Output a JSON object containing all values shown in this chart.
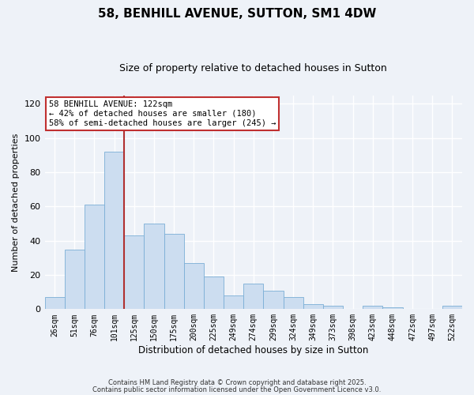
{
  "title": "58, BENHILL AVENUE, SUTTON, SM1 4DW",
  "subtitle": "Size of property relative to detached houses in Sutton",
  "xlabel": "Distribution of detached houses by size in Sutton",
  "ylabel": "Number of detached properties",
  "bar_color": "#ccddf0",
  "bar_edge_color": "#7aaed6",
  "categories": [
    "26sqm",
    "51sqm",
    "76sqm",
    "101sqm",
    "125sqm",
    "150sqm",
    "175sqm",
    "200sqm",
    "225sqm",
    "249sqm",
    "274sqm",
    "299sqm",
    "324sqm",
    "349sqm",
    "373sqm",
    "398sqm",
    "423sqm",
    "448sqm",
    "472sqm",
    "497sqm",
    "522sqm"
  ],
  "values": [
    7,
    35,
    61,
    92,
    43,
    50,
    44,
    27,
    19,
    8,
    15,
    11,
    7,
    3,
    2,
    0,
    2,
    1,
    0,
    0,
    2
  ],
  "ylim": [
    0,
    125
  ],
  "yticks": [
    0,
    20,
    40,
    60,
    80,
    100,
    120
  ],
  "vline_color": "#b03030",
  "annotation_title": "58 BENHILL AVENUE: 122sqm",
  "annotation_line1": "← 42% of detached houses are smaller (180)",
  "annotation_line2": "58% of semi-detached houses are larger (245) →",
  "annotation_box_color": "#ffffff",
  "annotation_box_edge": "#c03030",
  "footnote1": "Contains HM Land Registry data © Crown copyright and database right 2025.",
  "footnote2": "Contains public sector information licensed under the Open Government Licence v3.0.",
  "bg_color": "#eef2f8",
  "grid_color": "#ffffff"
}
